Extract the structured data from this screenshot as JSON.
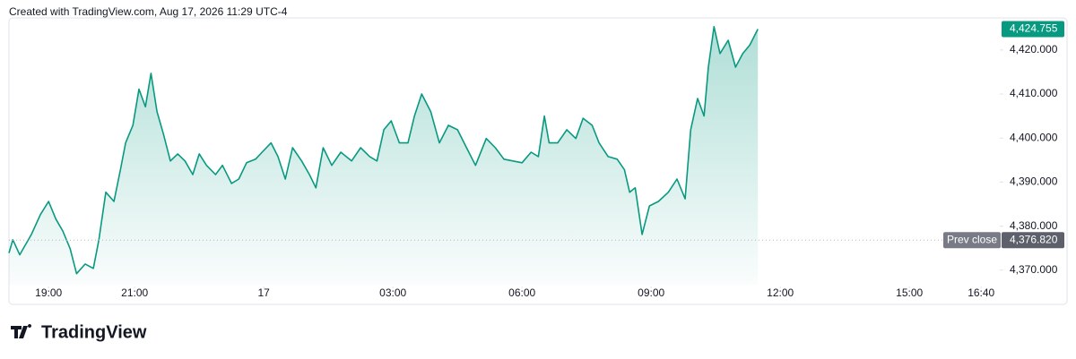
{
  "header_note": "Created with TradingView.com, Aug 17, 2026 11:29 UTC-4",
  "brand": "TradingView",
  "chart_data": {
    "type": "area",
    "x": [
      18.08,
      18.17,
      18.33,
      18.6,
      18.81,
      19,
      19.17,
      19.33,
      19.5,
      19.65,
      19.85,
      20.04,
      20.17,
      20.33,
      20.52,
      20.67,
      20.79,
      20.96,
      21.1,
      21.25,
      21.38,
      21.52,
      21.67,
      21.83,
      22,
      22.17,
      22.35,
      22.5,
      22.67,
      22.88,
      23.04,
      23.25,
      23.42,
      23.6,
      23.81,
      23.96,
      24.17,
      24.33,
      24.5,
      24.67,
      24.88,
      25.06,
      25.21,
      25.38,
      25.58,
      25.79,
      26.04,
      26.25,
      26.46,
      26.63,
      26.79,
      26.96,
      27.15,
      27.35,
      27.5,
      27.67,
      27.88,
      28.08,
      28.29,
      28.5,
      28.71,
      28.92,
      29.17,
      29.38,
      29.58,
      29.79,
      30,
      30.21,
      30.38,
      30.52,
      30.63,
      30.83,
      31.04,
      31.25,
      31.42,
      31.63,
      31.79,
      32,
      32.21,
      32.38,
      32.5,
      32.63,
      32.79,
      32.96,
      33.17,
      33.4,
      33.6,
      33.79,
      33.92,
      34.08,
      34.23,
      34.33,
      34.46,
      34.6,
      34.79,
      34.96,
      35.13,
      35.29,
      35.48
    ],
    "series": [
      {
        "color": "#089981",
        "values": [
          4373.9,
          4376.9,
          4373.5,
          4378.1,
          4382.6,
          4385.6,
          4381.6,
          4378.9,
          4374.9,
          4369.2,
          4371.4,
          4370.4,
          4376.9,
          4387.7,
          4385.6,
          4392.8,
          4398.9,
          4402.9,
          4411.1,
          4407.1,
          4414.7,
          4406,
          4400.9,
          4394.8,
          4396.4,
          4394.8,
          4391.7,
          4396.4,
          4393.8,
          4391.7,
          4393.8,
          4389.7,
          4390.7,
          4394.4,
          4395.2,
          4396.8,
          4398.9,
          4395.8,
          4390.7,
          4397.8,
          4394.8,
          4391.7,
          4388.7,
          4397.8,
          4393.8,
          4396.8,
          4394.8,
          4397.8,
          4395.8,
          4394.8,
          4401.9,
          4403.9,
          4398.9,
          4398.9,
          4405,
          4410,
          4406,
          4398.9,
          4402.9,
          4401.9,
          4397.8,
          4393.8,
          4399.9,
          4397.8,
          4395.2,
          4394.8,
          4394.4,
          4396.8,
          4395.8,
          4405,
          4398.9,
          4398.9,
          4401.9,
          4399.9,
          4404.5,
          4402.9,
          4398.9,
          4395.8,
          4395.2,
          4392.8,
          4387.7,
          4388.7,
          4378.1,
          4384.6,
          4385.6,
          4387.7,
          4390.7,
          4386.2,
          4401.9,
          4409,
          4405,
          4416.1,
          4425.3,
          4419.2,
          4422.2,
          4416.1,
          4419.2,
          4421.1,
          4424.755
        ]
      }
    ],
    "last_value_label": "4,424.755",
    "reference_line": {
      "name": "Prev close",
      "value": 4376.82,
      "label": "4,376.820"
    },
    "xlim": [
      18.08,
      41.1
    ],
    "ylim": [
      4366.7,
      4427.7
    ],
    "xticks": [
      {
        "value": 19,
        "label": "19:00"
      },
      {
        "value": 21,
        "label": "21:00"
      },
      {
        "value": 24,
        "label": "17"
      },
      {
        "value": 27,
        "label": "03:00"
      },
      {
        "value": 30,
        "label": "06:00"
      },
      {
        "value": 33,
        "label": "09:00"
      },
      {
        "value": 36,
        "label": "12:00"
      },
      {
        "value": 39,
        "label": "15:00"
      },
      {
        "value": 40.667,
        "label": "16:40"
      }
    ],
    "yticks": [
      {
        "value": 4370,
        "label": "4,370.000"
      },
      {
        "value": 4380,
        "label": "4,380.000"
      },
      {
        "value": 4390,
        "label": "4,390.000"
      },
      {
        "value": 4400,
        "label": "4,400.000"
      },
      {
        "value": 4410,
        "label": "4,410.000"
      },
      {
        "value": 4420,
        "label": "4,420.000"
      }
    ],
    "grid": false
  }
}
